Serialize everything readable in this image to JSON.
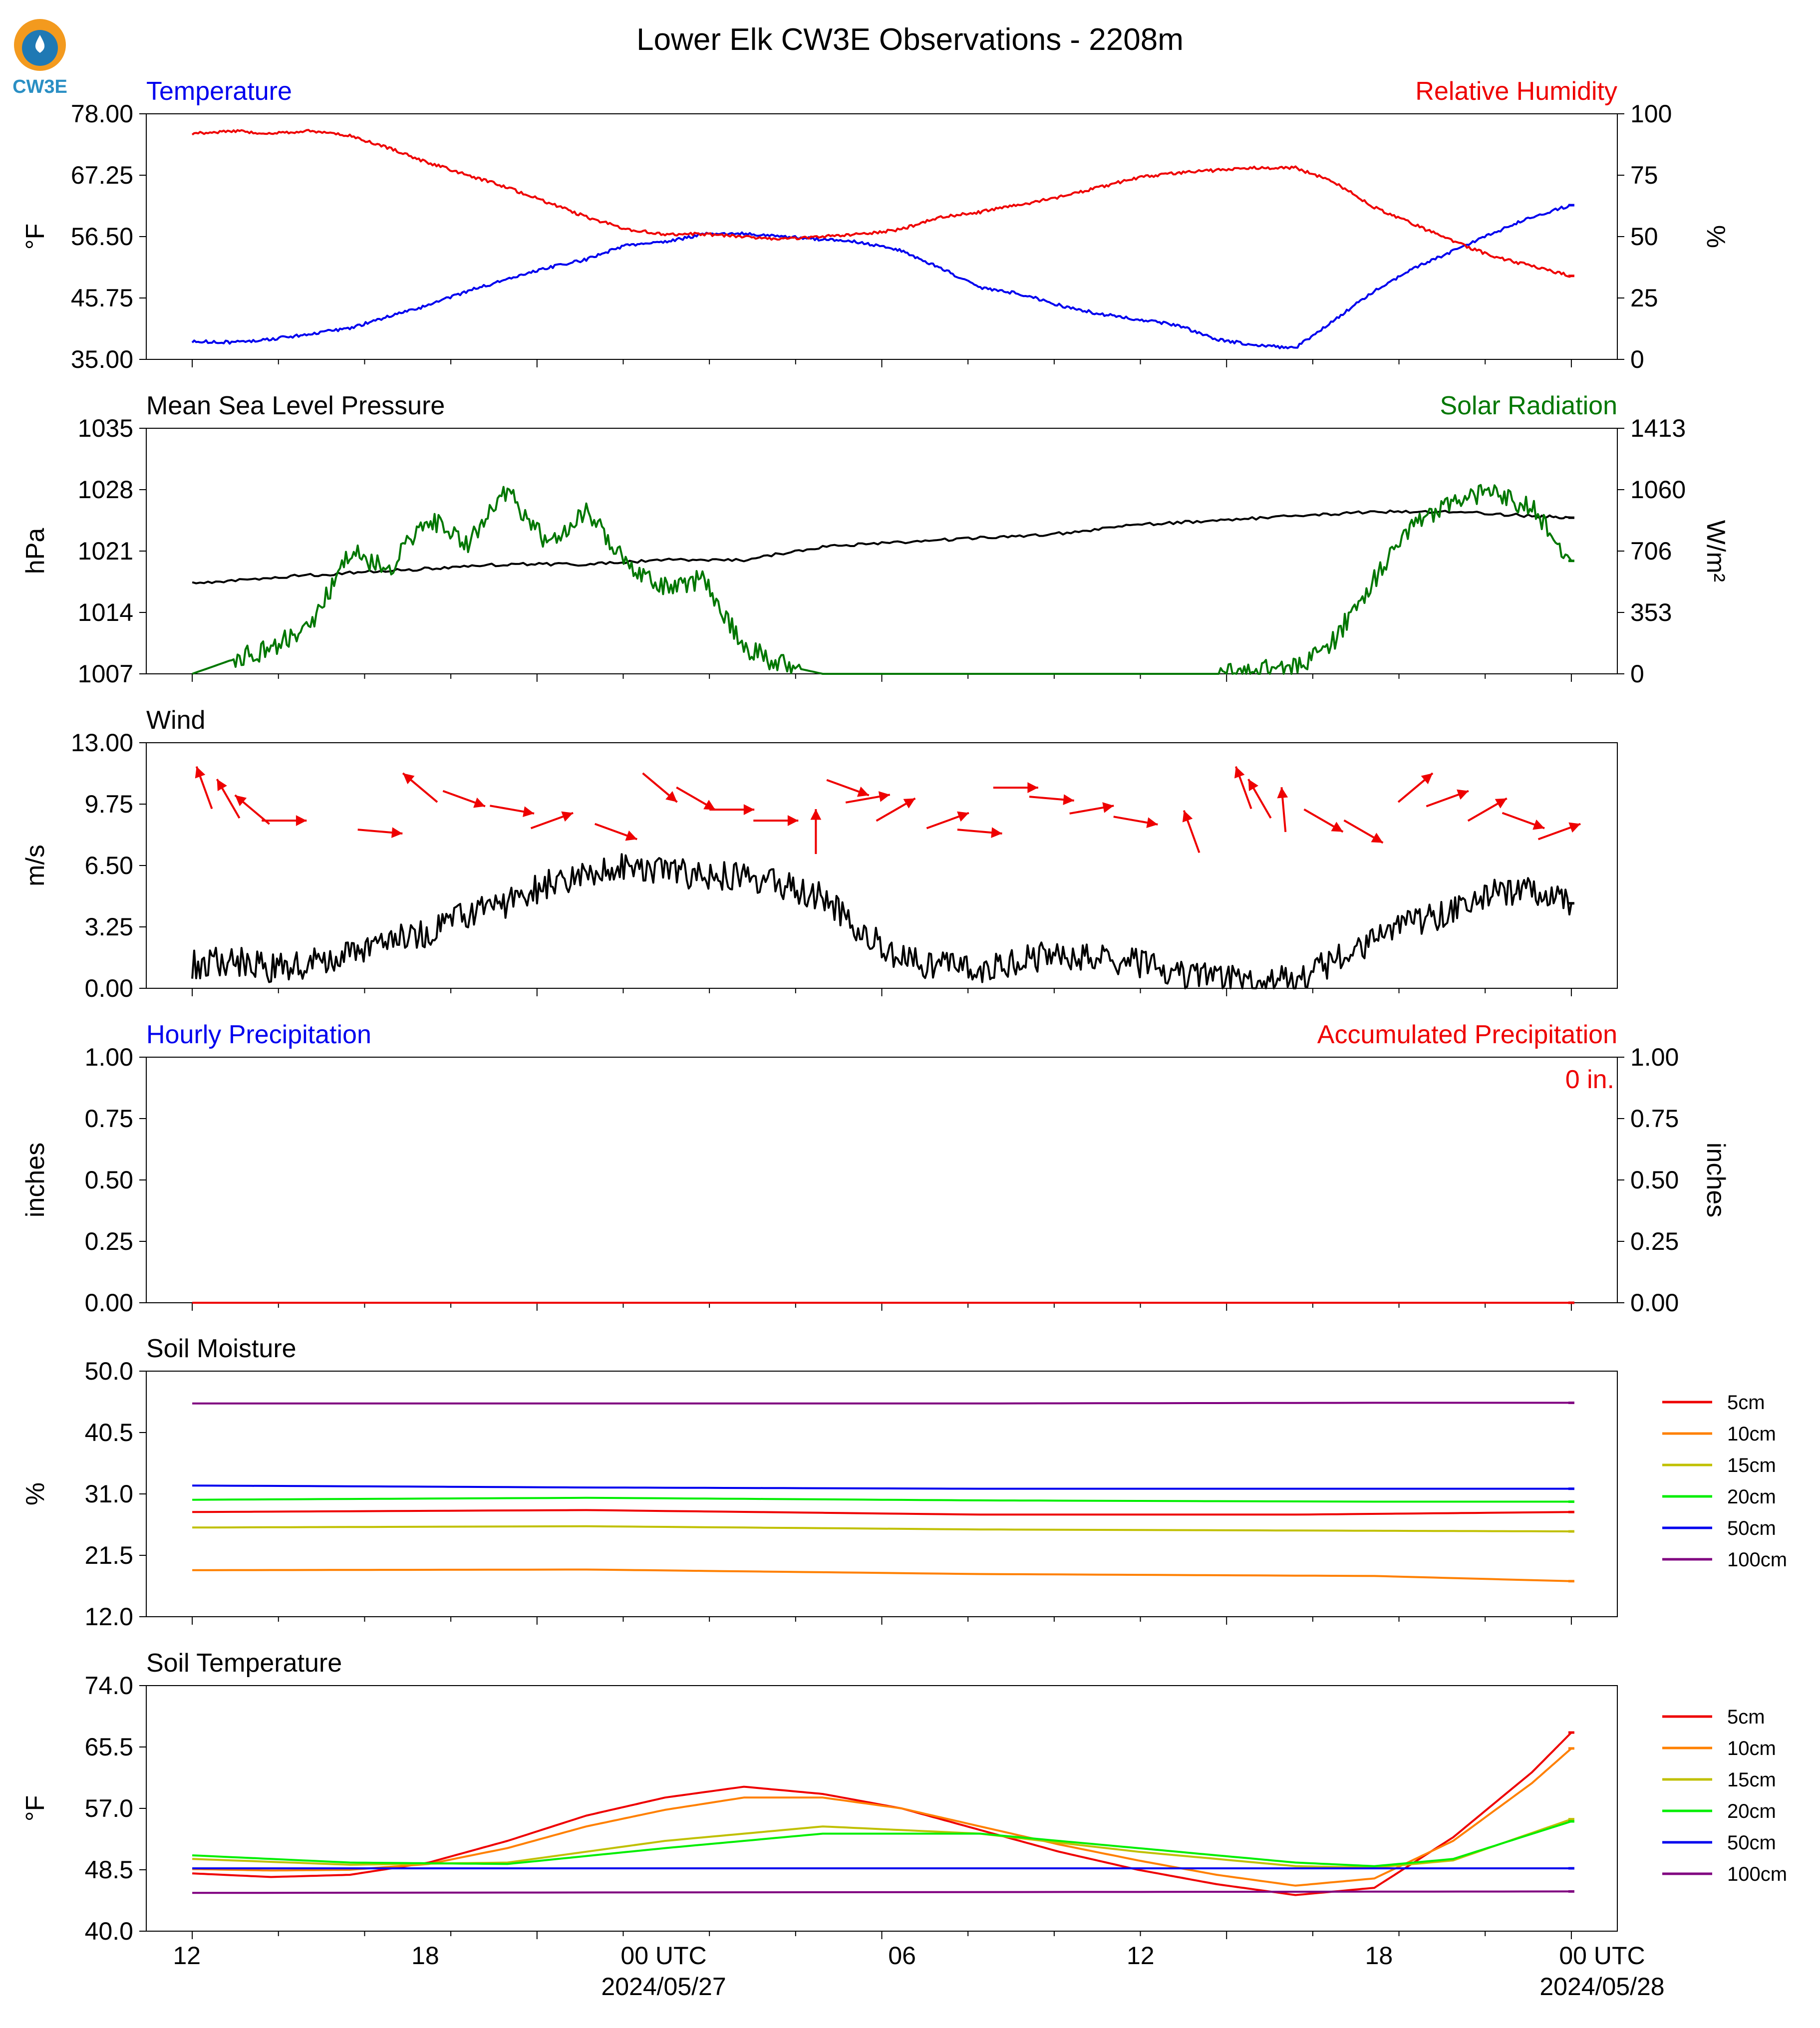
{
  "chart_data": {
    "type": "line",
    "title": "Lower Elk CW3E Observations - 2208m",
    "logo": "CW3E",
    "x_axis": {
      "range_hours": [
        -0.8,
        24.8
      ],
      "tick_labels": [
        "12",
        "18",
        "00 UTC",
        "06",
        "12",
        "18",
        "00 UTC"
      ],
      "date_labels": [
        "2024/05/27",
        "2024/05/28"
      ]
    },
    "panels": [
      {
        "name": "temperature-rh",
        "left_title": "Temperature",
        "right_title": "Relative Humidity",
        "ylabel": "°F",
        "ylabel_right": "%",
        "yticks": [
          "35.00",
          "45.75",
          "56.50",
          "67.25",
          "78.00"
        ],
        "yticks_right": [
          "0",
          "25",
          "50",
          "75",
          "100"
        ],
        "ylim": [
          35,
          78
        ],
        "ylim_right": [
          0,
          100
        ],
        "series": [
          {
            "name": "Temperature",
            "color": "#0000ee",
            "axis": "left",
            "x": [
              0,
              1,
              2,
              3,
              4,
              5,
              6,
              7,
              8,
              9,
              10,
              11,
              12,
              13,
              14,
              15,
              16,
              17,
              18,
              19,
              20,
              21,
              22,
              23,
              24,
              25,
              26,
              27,
              28,
              29,
              30,
              31,
              32,
              33,
              34,
              35
            ],
            "y": [
              38.2,
              38.0,
              38.5,
              39.5,
              40.5,
              42.5,
              44.5,
              47.0,
              49.0,
              51.0,
              52.5,
              55.0,
              55.5,
              57.0,
              57.0,
              56.5,
              56.0,
              55.5,
              54.0,
              51.0,
              47.5,
              46.5,
              44.5,
              43.0,
              42.0,
              41.0,
              38.5,
              37.5,
              37.0,
              42.0,
              47.0,
              51.0,
              54.0,
              57.0,
              60.0,
              62.0
            ]
          },
          {
            "name": "Relative Humidity",
            "color": "#ee0000",
            "axis": "right",
            "x": [
              0,
              1,
              2,
              3,
              4,
              5,
              6,
              7,
              8,
              9,
              10,
              11,
              12,
              13,
              14,
              15,
              16,
              17,
              18,
              19,
              20,
              21,
              22,
              23,
              24,
              25,
              26,
              27,
              28,
              29,
              30,
              31,
              32,
              33,
              34,
              35
            ],
            "y": [
              92,
              93,
              92,
              93,
              91,
              86,
              80,
              75,
              70,
              64,
              58,
              53,
              51,
              51,
              50,
              49,
              50,
              51,
              53,
              58,
              60,
              63,
              66,
              70,
              74,
              76,
              77,
              78,
              78,
              72,
              62,
              55,
              48,
              42,
              38,
              34
            ]
          }
        ]
      },
      {
        "name": "pressure-solar",
        "left_title": "Mean Sea Level Pressure",
        "right_title": "Solar Radiation",
        "ylabel": "hPa",
        "ylabel_right": "W/m²",
        "yticks": [
          "1007",
          "1014",
          "1021",
          "1028",
          "1035"
        ],
        "yticks_right": [
          "0",
          "353",
          "706",
          "1060",
          "1413"
        ],
        "ylim": [
          1007,
          1035
        ],
        "ylim_right": [
          0,
          1413
        ],
        "series": [
          {
            "name": "Mean Sea Level Pressure",
            "color": "#000000",
            "axis": "left",
            "x": [
              0,
              2,
              4,
              6,
              8,
              10,
              12,
              14,
              16,
              18,
              20,
              22,
              24,
              26,
              28,
              30,
              32,
              34,
              35
            ],
            "y": [
              1017.3,
              1018.0,
              1018.5,
              1019.0,
              1019.5,
              1019.5,
              1020.0,
              1020.0,
              1021.5,
              1022.0,
              1022.5,
              1023.0,
              1024.0,
              1024.5,
              1025.0,
              1025.5,
              1025.5,
              1025.0,
              1024.8
            ]
          },
          {
            "name": "Solar Radiation",
            "color": "#007700",
            "axis": "right",
            "x": [
              0,
              1,
              2,
              3,
              4,
              5,
              6,
              7,
              8,
              9,
              10,
              11,
              12,
              13,
              14,
              15,
              16,
              17,
              18,
              19,
              26,
              27,
              28,
              29,
              30,
              31,
              32,
              33,
              34,
              35
            ],
            "y": [
              0,
              80,
              150,
              270,
              700,
              600,
              900,
              750,
              1050,
              750,
              950,
              650,
              500,
              550,
              150,
              50,
              0,
              0,
              0,
              0,
              0,
              20,
              30,
              200,
              550,
              850,
              1000,
              1050,
              950,
              650
            ]
          }
        ]
      },
      {
        "name": "wind",
        "left_title": "Wind",
        "ylabel": "m/s",
        "yticks": [
          "0.00",
          "3.25",
          "6.50",
          "9.75",
          "13.00"
        ],
        "ylim": [
          0,
          13
        ],
        "series": [
          {
            "name": "Wind Speed",
            "color": "#000000",
            "axis": "left",
            "x": [
              0,
              1,
              2,
              3,
              4,
              5,
              6,
              7,
              8,
              9,
              10,
              11,
              12,
              13,
              14,
              15,
              16,
              17,
              18,
              19,
              20,
              21,
              22,
              23,
              24,
              25,
              26,
              27,
              28,
              29,
              30,
              31,
              32,
              33,
              34,
              35
            ],
            "y": [
              1.2,
              1.5,
              1.0,
              1.3,
              1.8,
              2.5,
              3.0,
              4.0,
              4.5,
              5.5,
              6.0,
              6.5,
              6.3,
              5.8,
              6.0,
              5.5,
              4.8,
              3.0,
              1.5,
              1.2,
              1.0,
              1.5,
              1.8,
              1.6,
              1.3,
              0.8,
              0.6,
              0.5,
              0.4,
              1.5,
              2.5,
              3.5,
              4.0,
              5.0,
              5.2,
              4.5
            ]
          },
          {
            "name": "Wind Direction",
            "color": "#ee0000",
            "kind": "arrows",
            "x": [
              0.3,
              0.9,
              1.5,
              2.3,
              4.7,
              5.7,
              6.8,
              8.0,
              9.0,
              10.6,
              11.7,
              12.6,
              13.5,
              14.6,
              15.6,
              16.4,
              16.9,
              17.6,
              18.9,
              19.7,
              20.6,
              21.5,
              22.5,
              23.6,
              25.0,
              26.3,
              26.7,
              27.3,
              28.3,
              29.3,
              30.6,
              31.4,
              32.4,
              33.3,
              34.2
            ],
            "angle_deg": [
              -110,
              -120,
              -140,
              0,
              5,
              -140,
              20,
              10,
              -20,
              20,
              40,
              30,
              0,
              0,
              -90,
              20,
              -10,
              -30,
              -20,
              5,
              0,
              5,
              -10,
              10,
              -110,
              -110,
              -120,
              -95,
              30,
              30,
              -40,
              -20,
              -30,
              20,
              -20
            ]
          }
        ]
      },
      {
        "name": "precipitation",
        "left_title": "Hourly Precipitation",
        "right_title": "Accumulated Precipitation",
        "annotation": "0 in.",
        "ylabel": "inches",
        "ylabel_right": "inches",
        "yticks": [
          "0.00",
          "0.25",
          "0.50",
          "0.75",
          "1.00"
        ],
        "yticks_right": [
          "0.00",
          "0.25",
          "0.50",
          "0.75",
          "1.00"
        ],
        "ylim": [
          0,
          1
        ],
        "series": [
          {
            "name": "Hourly Precipitation",
            "color": "#0000ee",
            "axis": "left",
            "x": [
              0,
              35
            ],
            "y": [
              0,
              0
            ]
          },
          {
            "name": "Accumulated Precipitation",
            "color": "#ee0000",
            "axis": "right",
            "x": [
              0,
              35
            ],
            "y": [
              0,
              0
            ]
          }
        ]
      },
      {
        "name": "soil-moisture",
        "left_title": "Soil Moisture",
        "ylabel": "%",
        "yticks": [
          "12.0",
          "21.5",
          "31.0",
          "40.5",
          "50.0"
        ],
        "ylim": [
          12,
          50
        ],
        "legend": [
          "5cm",
          "10cm",
          "15cm",
          "20cm",
          "50cm",
          "100cm"
        ],
        "series": [
          {
            "name": "5cm",
            "color": "#ee0000",
            "x": [
              0,
              10,
              20,
              28,
              35
            ],
            "y": [
              28.2,
              28.5,
              27.8,
              27.8,
              28.2
            ]
          },
          {
            "name": "10cm",
            "color": "#ff8000",
            "x": [
              0,
              10,
              20,
              30,
              35
            ],
            "y": [
              19.2,
              19.3,
              18.6,
              18.3,
              17.5
            ]
          },
          {
            "name": "15cm",
            "color": "#c0c000",
            "x": [
              0,
              10,
              20,
              30,
              35
            ],
            "y": [
              25.8,
              26.0,
              25.5,
              25.3,
              25.2
            ]
          },
          {
            "name": "20cm",
            "color": "#00ee00",
            "x": [
              0,
              10,
              20,
              30,
              35
            ],
            "y": [
              30.1,
              30.4,
              30.0,
              29.8,
              29.8
            ]
          },
          {
            "name": "50cm",
            "color": "#0000ee",
            "x": [
              0,
              10,
              20,
              30,
              35
            ],
            "y": [
              32.3,
              32.0,
              31.8,
              31.8,
              31.8
            ]
          },
          {
            "name": "100cm",
            "color": "#800080",
            "x": [
              0,
              10,
              20,
              30,
              35
            ],
            "y": [
              45.0,
              45.0,
              45.0,
              45.1,
              45.1
            ]
          }
        ]
      },
      {
        "name": "soil-temperature",
        "left_title": "Soil Temperature",
        "ylabel": "°F",
        "yticks": [
          "40.0",
          "48.5",
          "57.0",
          "65.5",
          "74.0"
        ],
        "ylim": [
          40,
          74
        ],
        "legend": [
          "5cm",
          "10cm",
          "15cm",
          "20cm",
          "50cm",
          "100cm"
        ],
        "series": [
          {
            "name": "5cm",
            "color": "#ee0000",
            "x": [
              0,
              2,
              4,
              6,
              8,
              10,
              12,
              14,
              16,
              18,
              20,
              22,
              24,
              26,
              28,
              30,
              32,
              34,
              35
            ],
            "y": [
              48.0,
              47.5,
              47.8,
              49.5,
              52.5,
              56.0,
              58.5,
              60.0,
              59.0,
              57.0,
              54.0,
              51.0,
              48.5,
              46.5,
              45.0,
              46.0,
              53.0,
              62.0,
              67.5
            ]
          },
          {
            "name": "10cm",
            "color": "#ff8000",
            "x": [
              0,
              2,
              4,
              6,
              8,
              10,
              12,
              14,
              16,
              18,
              20,
              22,
              24,
              26,
              28,
              30,
              32,
              34,
              35
            ],
            "y": [
              48.6,
              48.4,
              48.5,
              49.3,
              51.5,
              54.5,
              56.8,
              58.5,
              58.5,
              57.0,
              54.5,
              52.0,
              49.8,
              47.8,
              46.3,
              47.3,
              52.5,
              60.5,
              65.3
            ]
          },
          {
            "name": "15cm",
            "color": "#c0c000",
            "x": [
              0,
              4,
              8,
              12,
              16,
              20,
              24,
              28,
              30,
              32,
              35
            ],
            "y": [
              50.0,
              49.2,
              49.5,
              52.5,
              54.5,
              53.5,
              51.0,
              49.0,
              48.8,
              49.8,
              55.5
            ]
          },
          {
            "name": "20cm",
            "color": "#00ee00",
            "x": [
              0,
              4,
              8,
              12,
              16,
              20,
              24,
              28,
              30,
              32,
              35
            ],
            "y": [
              50.5,
              49.5,
              49.3,
              51.5,
              53.5,
              53.5,
              51.5,
              49.5,
              49.0,
              50.0,
              55.2
            ]
          },
          {
            "name": "50cm",
            "color": "#0000ee",
            "x": [
              0,
              35
            ],
            "y": [
              48.7,
              48.7
            ]
          },
          {
            "name": "100cm",
            "color": "#800080",
            "x": [
              0,
              35
            ],
            "y": [
              45.3,
              45.5
            ]
          }
        ]
      }
    ]
  }
}
